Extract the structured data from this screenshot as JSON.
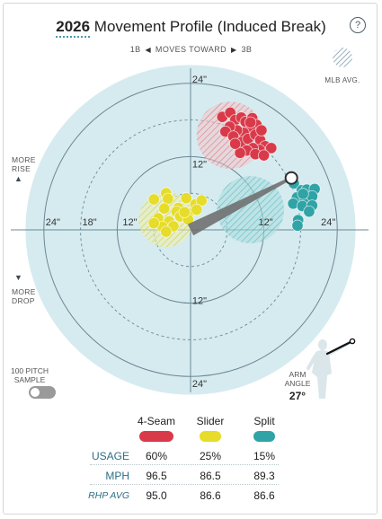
{
  "header": {
    "year": "2026",
    "title_rest": " Movement Profile (Induced Break)",
    "help_label": "?"
  },
  "direction": {
    "left": "1B",
    "center": "MOVES TOWARD",
    "right": "3B"
  },
  "mlb_avg_label": "MLB AVG.",
  "side_labels": {
    "rise_1": "MORE",
    "rise_2": "RISE",
    "drop_1": "MORE",
    "drop_2": "DROP"
  },
  "sample": {
    "line1": "100 PITCH",
    "line2": "SAMPLE"
  },
  "arm_angle": {
    "line1": "ARM",
    "line2": "ANGLE",
    "value": "27°",
    "degrees": 27
  },
  "colors": {
    "four_seam": "#d93a4a",
    "slider": "#e6dc2a",
    "split": "#2fa3a6",
    "disc": "#d6ebf0",
    "grid": "#6b8894",
    "mean_arm": "#777777"
  },
  "chart_data": {
    "type": "scatter",
    "title": "2026 Movement Profile (Induced Break)",
    "units": "inches",
    "rings": [
      6,
      12,
      18,
      24
    ],
    "solid_rings": [
      12,
      24
    ],
    "axis_labels": {
      "up_24": "24\"",
      "up_12": "12\"",
      "down_12": "12\"",
      "down_24": "24\"",
      "left_24": "24\"",
      "left_18": "18\"",
      "left_12": "12\"",
      "right_12": "12\"",
      "right_24": "24\""
    },
    "x_range": [
      -27,
      27
    ],
    "y_range": [
      -27,
      27
    ],
    "arm_vector": {
      "x": 16.5,
      "y": 8.5
    },
    "mlb_averages": [
      {
        "pitch": "4-Seam",
        "x": 6.5,
        "y": 15.5,
        "r": 5.5
      },
      {
        "pitch": "Slider",
        "x": -4,
        "y": 1.7,
        "r": 4.5
      },
      {
        "pitch": "Split",
        "x": 9.8,
        "y": 3.3,
        "r": 5.5
      }
    ],
    "series": [
      {
        "name": "4-Seam",
        "points": [
          [
            5.2,
            18.5
          ],
          [
            6.5,
            19.2
          ],
          [
            7.3,
            18.0
          ],
          [
            8.3,
            18.4
          ],
          [
            9.0,
            17.7
          ],
          [
            10.1,
            18.3
          ],
          [
            10.8,
            17.2
          ],
          [
            9.8,
            16.4
          ],
          [
            8.7,
            15.9
          ],
          [
            7.6,
            16.3
          ],
          [
            6.4,
            16.9
          ],
          [
            5.7,
            16.1
          ],
          [
            7.0,
            15.3
          ],
          [
            8.4,
            14.4
          ],
          [
            9.4,
            14.9
          ],
          [
            10.6,
            15.6
          ],
          [
            11.4,
            14.7
          ],
          [
            12.2,
            13.7
          ],
          [
            13.2,
            13.4
          ],
          [
            11.3,
            13.1
          ],
          [
            10.2,
            13.4
          ],
          [
            9.2,
            13.0
          ],
          [
            8.1,
            12.6
          ],
          [
            10.6,
            12.4
          ],
          [
            12.0,
            12.2
          ],
          [
            7.3,
            14.1
          ],
          [
            9.8,
            17.6
          ],
          [
            11.6,
            16.3
          ]
        ]
      },
      {
        "name": "Slider",
        "points": [
          [
            -6.0,
            5.0
          ],
          [
            -4.0,
            6.0
          ],
          [
            -3.7,
            5.1
          ],
          [
            -2.0,
            3.6
          ],
          [
            -0.7,
            5.2
          ],
          [
            0.8,
            4.2
          ],
          [
            1.8,
            4.8
          ],
          [
            -4.3,
            3.5
          ],
          [
            -2.3,
            3.0
          ],
          [
            -0.4,
            2.7
          ],
          [
            -5.3,
            1.9
          ],
          [
            -3.5,
            1.4
          ],
          [
            -1.7,
            2.2
          ],
          [
            -0.4,
            1.7
          ],
          [
            -4.6,
            0.5
          ],
          [
            -2.8,
            0.6
          ],
          [
            -6.0,
            1.1
          ],
          [
            -1.0,
            2.9
          ],
          [
            1.0,
            3.3
          ],
          [
            -4.0,
            -0.3
          ]
        ]
      },
      {
        "name": "Split",
        "points": [
          [
            16.9,
            7.6
          ],
          [
            18.2,
            6.5
          ],
          [
            19.0,
            6.6
          ],
          [
            20.3,
            6.7
          ],
          [
            17.4,
            5.3
          ],
          [
            18.7,
            5.1
          ],
          [
            19.9,
            5.5
          ],
          [
            16.8,
            4.3
          ],
          [
            18.3,
            3.9
          ],
          [
            19.9,
            4.0
          ],
          [
            19.4,
            3.0
          ],
          [
            17.6,
            1.6
          ],
          [
            18.4,
            5.9
          ],
          [
            17.5,
            0.7
          ]
        ]
      }
    ]
  },
  "table": {
    "pitches": [
      "4-Seam",
      "Slider",
      "Split"
    ],
    "rows": [
      {
        "label": "USAGE",
        "values": [
          "60%",
          "25%",
          "15%"
        ]
      },
      {
        "label": "MPH",
        "values": [
          "96.5",
          "86.5",
          "89.3"
        ]
      },
      {
        "label": "RHP AVG",
        "values": [
          "95.0",
          "86.6",
          "86.6"
        ]
      }
    ]
  }
}
